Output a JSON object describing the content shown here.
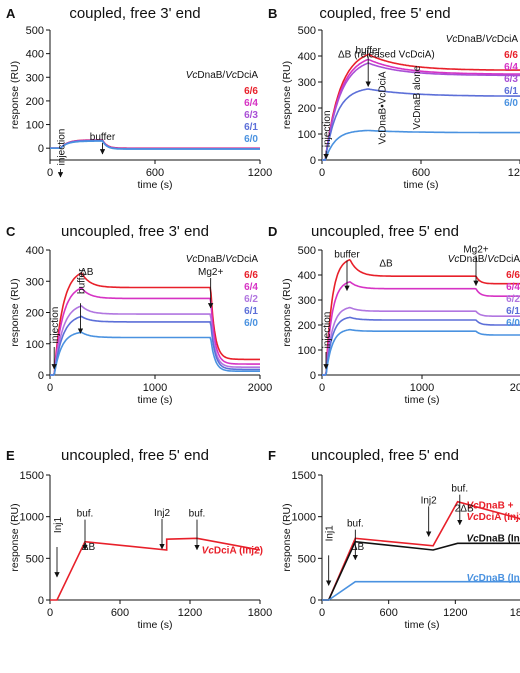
{
  "colors": {
    "c6_6": "#e8202a",
    "c6_4": "#d633c4",
    "c6_3": "#a94fd6",
    "c6_2": "#b176e0",
    "c6_1": "#5c6fd8",
    "c6_0": "#4a92e0",
    "black": "#111111",
    "annot": "#e0662a"
  },
  "chart_data": [
    {
      "panel": "A",
      "title": "coupled,  free 3' end",
      "type": "line",
      "xlabel": "time (s)",
      "ylabel": "response (RU)",
      "xlim": [
        0,
        1200
      ],
      "ylim": [
        -50,
        500
      ],
      "xticks": [
        0,
        600,
        1200
      ],
      "yticks": [
        0,
        100,
        200,
        300,
        400,
        500
      ],
      "legend_title": "VcDnaB/VcDciA",
      "legend_title_parts": [
        {
          "t": "Vc",
          "i": true
        },
        {
          "t": "DnaB/",
          "i": false
        },
        {
          "t": "Vc",
          "i": true
        },
        {
          "t": "DciA",
          "i": false
        }
      ],
      "annotations": [
        {
          "text": "injection",
          "x": 60,
          "y": 5,
          "vertical": true,
          "arrow": true
        },
        {
          "text": "buffer",
          "x": 300,
          "y": 35,
          "vertical": false,
          "arrow": true
        }
      ],
      "series": [
        {
          "name": "6/6",
          "color": "c6_6",
          "plateau": 35,
          "assoc_tau": 40,
          "dissoc_plateau": 0,
          "dissoc_tau": 25,
          "base": 0
        },
        {
          "name": "6/4",
          "color": "c6_4",
          "plateau": 34,
          "assoc_tau": 40,
          "dissoc_plateau": -1,
          "dissoc_tau": 25,
          "base": 0
        },
        {
          "name": "6/3",
          "color": "c6_3",
          "plateau": 33,
          "assoc_tau": 40,
          "dissoc_plateau": -2,
          "dissoc_tau": 25,
          "base": 0
        },
        {
          "name": "6/1",
          "color": "c6_1",
          "plateau": 32,
          "assoc_tau": 40,
          "dissoc_plateau": -3,
          "dissoc_tau": 25,
          "base": 0
        },
        {
          "name": "6/0",
          "color": "c6_0",
          "plateau": 30,
          "assoc_tau": 40,
          "dissoc_plateau": -4,
          "dissoc_tau": 25,
          "base": 0
        }
      ],
      "inj": 60,
      "buf": 300,
      "end": 1200
    },
    {
      "panel": "B",
      "title": "coupled, free 5' end",
      "type": "line",
      "xlabel": "time (s)",
      "ylabel": "response (RU)",
      "xlim": [
        0,
        1200
      ],
      "ylim": [
        0,
        500
      ],
      "xticks": [
        0,
        600,
        1200
      ],
      "yticks": [
        0,
        100,
        200,
        300,
        400,
        500
      ],
      "legend_title": "VcDnaB/VcDciA",
      "legend_title_parts": [
        {
          "t": "Vc",
          "i": true
        },
        {
          "t": "DnaB/",
          "i": false
        },
        {
          "t": "Vc",
          "i": true
        },
        {
          "t": "DciA",
          "i": false
        }
      ],
      "annotations": [
        {
          "text": "injection",
          "x": 25,
          "y": 120,
          "vertical": true,
          "arrow": true
        },
        {
          "text": "buffer",
          "x": 280,
          "y": 410,
          "vertical": false,
          "arrow": true
        },
        {
          "text": "ΔB (released VcDciA)",
          "x": 390,
          "y": 395,
          "vertical": false,
          "arrow": false,
          "color": "annot"
        },
        {
          "text": "VcDnaB•VcDciA",
          "x": 360,
          "y": 200,
          "vertical": true,
          "arrow": false,
          "color": "annot"
        },
        {
          "text": "VcDnaB alone",
          "x": 570,
          "y": 240,
          "vertical": true,
          "arrow": false,
          "color": "annot"
        }
      ],
      "series": [
        {
          "name": "6/6",
          "color": "c6_6",
          "plateau": 430,
          "assoc_tau": 90,
          "dissoc_plateau": 345,
          "dissoc_tau": 200,
          "base": 0
        },
        {
          "name": "6/4",
          "color": "c6_4",
          "plateau": 410,
          "assoc_tau": 90,
          "dissoc_plateau": 330,
          "dissoc_tau": 200,
          "base": 0
        },
        {
          "name": "6/3",
          "color": "c6_3",
          "plateau": 395,
          "assoc_tau": 90,
          "dissoc_plateau": 325,
          "dissoc_tau": 200,
          "base": 0
        },
        {
          "name": "6/1",
          "color": "c6_1",
          "plateau": 280,
          "assoc_tau": 70,
          "dissoc_plateau": 245,
          "dissoc_tau": 250,
          "base": 0
        },
        {
          "name": "6/0",
          "color": "c6_0",
          "plateau": 115,
          "assoc_tau": 60,
          "dissoc_plateau": 105,
          "dissoc_tau": 250,
          "base": 0
        }
      ],
      "inj": 20,
      "buf": 280,
      "end": 1200
    },
    {
      "panel": "C",
      "title": "uncoupled, free 3' end",
      "type": "line",
      "xlabel": "time (s)",
      "ylabel": "response (RU)",
      "xlim": [
        0,
        2000
      ],
      "ylim": [
        0,
        400
      ],
      "xticks": [
        0,
        1000,
        2000
      ],
      "yticks": [
        0,
        100,
        200,
        300,
        400
      ],
      "legend_title": "VcDnaB/VcDciA",
      "legend_title_parts": [
        {
          "t": "Vc",
          "i": true
        },
        {
          "t": "DnaB/",
          "i": false
        },
        {
          "t": "Vc",
          "i": true
        },
        {
          "t": "DciA",
          "i": false
        }
      ],
      "annotations": [
        {
          "text": "injection",
          "x": 40,
          "y": 160,
          "vertical": true,
          "arrow": true
        },
        {
          "text": "buffer",
          "x": 290,
          "y": 300,
          "vertical": true,
          "arrow": true
        },
        {
          "text": "ΔB",
          "x": 350,
          "y": 320,
          "vertical": false,
          "arrow": false,
          "color": "annot"
        },
        {
          "text": "Mg2+",
          "x": 1530,
          "y": 320,
          "vertical": false,
          "arrow": true
        }
      ],
      "series": [
        {
          "name": "6/6",
          "color": "c6_6",
          "plateau": 340,
          "assoc_tau": 80,
          "dissoc_plateau": 280,
          "dissoc_tau": 80,
          "base": 0,
          "mg_final": 50
        },
        {
          "name": "6/4",
          "color": "c6_4",
          "plateau": 290,
          "assoc_tau": 80,
          "dissoc_plateau": 245,
          "dissoc_tau": 80,
          "base": 0,
          "mg_final": 35
        },
        {
          "name": "6/2",
          "color": "c6_2",
          "plateau": 230,
          "assoc_tau": 80,
          "dissoc_plateau": 195,
          "dissoc_tau": 80,
          "base": 0,
          "mg_final": 25
        },
        {
          "name": "6/1",
          "color": "c6_1",
          "plateau": 195,
          "assoc_tau": 80,
          "dissoc_plateau": 170,
          "dissoc_tau": 80,
          "base": 0,
          "mg_final": 18
        },
        {
          "name": "6/0",
          "color": "c6_0",
          "plateau": 140,
          "assoc_tau": 70,
          "dissoc_plateau": 120,
          "dissoc_tau": 80,
          "base": 0,
          "mg_final": 12
        }
      ],
      "inj": 40,
      "buf": 300,
      "mg": 1530,
      "end": 2000
    },
    {
      "panel": "D",
      "title": "uncoupled, free 5' end",
      "type": "line",
      "xlabel": "time (s)",
      "ylabel": "response (RU)",
      "xlim": [
        0,
        2000
      ],
      "ylim": [
        0,
        500
      ],
      "xticks": [
        0,
        1000,
        2000
      ],
      "yticks": [
        0,
        100,
        200,
        300,
        400,
        500
      ],
      "legend_title": "VcDnaB/VcDciA",
      "legend_title_parts": [
        {
          "t": "Vc",
          "i": true
        },
        {
          "t": "DnaB/",
          "i": false
        },
        {
          "t": "Vc",
          "i": true
        },
        {
          "t": "DciA",
          "i": false
        }
      ],
      "annotations": [
        {
          "text": "injection",
          "x": 40,
          "y": 180,
          "vertical": true,
          "arrow": true
        },
        {
          "text": "buffer",
          "x": 250,
          "y": 470,
          "vertical": false,
          "arrow": true
        },
        {
          "text": "ΔB",
          "x": 640,
          "y": 435,
          "vertical": false,
          "arrow": false,
          "color": "annot"
        },
        {
          "text": "Mg2+",
          "x": 1540,
          "y": 490,
          "vertical": false,
          "arrow": true
        }
      ],
      "series": [
        {
          "name": "6/6",
          "color": "c6_6",
          "plateau": 470,
          "assoc_tau": 60,
          "dissoc_plateau": 395,
          "dissoc_tau": 80,
          "base": 0,
          "mg_final": 365
        },
        {
          "name": "6/4",
          "color": "c6_4",
          "plateau": 380,
          "assoc_tau": 60,
          "dissoc_plateau": 345,
          "dissoc_tau": 80,
          "base": 0,
          "mg_final": 315
        },
        {
          "name": "6/2",
          "color": "c6_2",
          "plateau": 275,
          "assoc_tau": 60,
          "dissoc_plateau": 255,
          "dissoc_tau": 80,
          "base": 0,
          "mg_final": 235
        },
        {
          "name": "6/1",
          "color": "c6_1",
          "plateau": 235,
          "assoc_tau": 60,
          "dissoc_plateau": 220,
          "dissoc_tau": 80,
          "base": 0,
          "mg_final": 200
        },
        {
          "name": "6/0",
          "color": "c6_0",
          "plateau": 185,
          "assoc_tau": 60,
          "dissoc_plateau": 175,
          "dissoc_tau": 80,
          "base": 0,
          "mg_final": 160
        }
      ],
      "inj": 40,
      "buf": 280,
      "mg": 1540,
      "end": 2000
    },
    {
      "panel": "E",
      "title": "uncoupled, free 5' end",
      "type": "line",
      "xlabel": "time (s)",
      "ylabel": "response (RU)",
      "xlim": [
        0,
        1800
      ],
      "ylim": [
        0,
        1500
      ],
      "xticks": [
        0,
        600,
        1200,
        1800
      ],
      "yticks": [
        0,
        500,
        1000,
        1500
      ],
      "annotations": [
        {
          "text": "Inj1",
          "x": 60,
          "y": 900,
          "vertical": true,
          "arrow": true
        },
        {
          "text": "buf.",
          "x": 300,
          "y": 1000,
          "vertical": false,
          "arrow": true
        },
        {
          "text": "ΔB",
          "x": 330,
          "y": 600,
          "vertical": false,
          "arrow": false,
          "color": "annot"
        },
        {
          "text": "Inj2",
          "x": 960,
          "y": 1010,
          "vertical": false,
          "arrow": true
        },
        {
          "text": "buf.",
          "x": 1260,
          "y": 1000,
          "vertical": false,
          "arrow": true
        }
      ],
      "trace_label_parts": [
        {
          "t": "Vc",
          "i": true
        },
        {
          "t": "DciA (Inj2)",
          "i": false
        }
      ],
      "trace": {
        "color": "c6_6",
        "segments": [
          [
            0,
            0
          ],
          [
            60,
            0
          ],
          [
            300,
            700
          ],
          [
            300,
            700
          ],
          [
            1000,
            600
          ],
          [
            1000,
            730
          ],
          [
            1260,
            740
          ],
          [
            1260,
            740
          ],
          [
            1800,
            600
          ]
        ]
      },
      "inj": 60,
      "buf": 300,
      "inj2": 1000,
      "buf2": 1260,
      "end": 1800
    },
    {
      "panel": "F",
      "title": "uncoupled, free 5' end",
      "type": "line",
      "xlabel": "time (s)",
      "ylabel": "response (RU)",
      "xlim": [
        0,
        1800
      ],
      "ylim": [
        0,
        1500
      ],
      "xticks": [
        0,
        600,
        1200,
        1800
      ],
      "yticks": [
        0,
        500,
        1000,
        1500
      ],
      "annotations": [
        {
          "text": "Inj1",
          "x": 60,
          "y": 800,
          "vertical": true,
          "arrow": true
        },
        {
          "text": "buf.",
          "x": 300,
          "y": 880,
          "vertical": false,
          "arrow": true
        },
        {
          "text": "ΔB",
          "x": 320,
          "y": 600,
          "vertical": false,
          "arrow": false,
          "color": "annot"
        },
        {
          "text": "Inj2",
          "x": 960,
          "y": 1160,
          "vertical": false,
          "arrow": true
        },
        {
          "text": "buf.",
          "x": 1240,
          "y": 1300,
          "vertical": false,
          "arrow": true
        },
        {
          "text": "2ΔB",
          "x": 1280,
          "y": 1060,
          "vertical": false,
          "arrow": false,
          "color": "annot"
        }
      ],
      "series_labels": [
        {
          "parts": [
            {
              "t": "Vc",
              "i": true
            },
            {
              "t": "DnaB +",
              "i": false
            }
          ],
          "y": 1100,
          "color": "c6_6"
        },
        {
          "parts": [
            {
              "t": "Vc",
              "i": true
            },
            {
              "t": "DciA (Inj2)",
              "i": false
            }
          ],
          "y": 960,
          "color": "c6_6"
        },
        {
          "parts": [
            {
              "t": "Vc",
              "i": true
            },
            {
              "t": "DnaB (Inj2)",
              "i": false
            }
          ],
          "y": 700,
          "color": "black"
        },
        {
          "parts": [
            {
              "t": "Vc",
              "i": true
            },
            {
              "t": "DnaB (Inj1)",
              "i": false
            }
          ],
          "y": 230,
          "color": "c6_0"
        }
      ],
      "traces": [
        {
          "color": "c6_6",
          "segments": [
            [
              0,
              0
            ],
            [
              60,
              0
            ],
            [
              300,
              740
            ],
            [
              300,
              740
            ],
            [
              1000,
              650
            ],
            [
              1000,
              650
            ],
            [
              1220,
              1180
            ],
            [
              1220,
              1180
            ],
            [
              1800,
              970
            ]
          ]
        },
        {
          "color": "black",
          "segments": [
            [
              0,
              0
            ],
            [
              60,
              0
            ],
            [
              300,
              700
            ],
            [
              300,
              700
            ],
            [
              1000,
              600
            ],
            [
              1000,
              600
            ],
            [
              1220,
              680
            ],
            [
              1220,
              680
            ],
            [
              1800,
              680
            ]
          ]
        },
        {
          "color": "c6_0",
          "segments": [
            [
              0,
              0
            ],
            [
              60,
              0
            ],
            [
              300,
              220
            ],
            [
              300,
              220
            ],
            [
              1800,
              220
            ]
          ]
        }
      ],
      "inj": 60,
      "buf": 300,
      "inj2": 1000,
      "buf2": 1220,
      "end": 1800
    }
  ]
}
